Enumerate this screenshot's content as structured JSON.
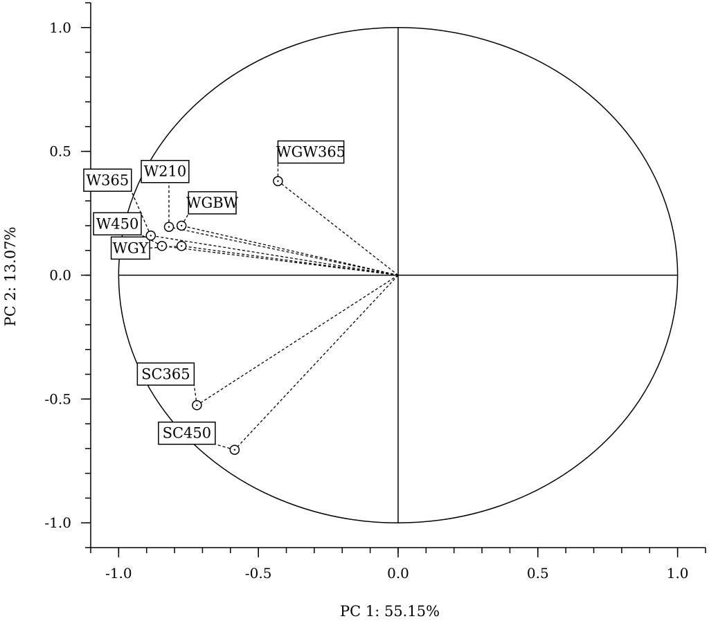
{
  "chart_data": {
    "type": "scatter",
    "title": "",
    "xlabel": "PC 1: 55.15%",
    "ylabel": "PC 2: 13.07%",
    "xlim": [
      -1.1,
      1.1
    ],
    "ylim": [
      -1.1,
      1.1
    ],
    "x_ticks": [
      {
        "value": -1.0,
        "label": "-1.0"
      },
      {
        "value": -0.5,
        "label": "-0.5"
      },
      {
        "value": 0.0,
        "label": "0.0"
      },
      {
        "value": 0.5,
        "label": "0.5"
      },
      {
        "value": 1.0,
        "label": "1.0"
      }
    ],
    "y_ticks": [
      {
        "value": 1.0,
        "label": "1.0"
      },
      {
        "value": 0.5,
        "label": "0.5"
      },
      {
        "value": 0.0,
        "label": "0.0"
      },
      {
        "value": -0.5,
        "label": "-0.5"
      },
      {
        "value": -1.0,
        "label": "-1.0"
      }
    ],
    "minor_tick_step": 0.1,
    "unit_circle": true,
    "reference_lines": [
      0
    ],
    "grid": false,
    "points": [
      {
        "name": "WGW365",
        "x": -0.43,
        "y": 0.38
      },
      {
        "name": "W210",
        "x": -0.82,
        "y": 0.195
      },
      {
        "name": "WGBW",
        "x": -0.775,
        "y": 0.2
      },
      {
        "name": "W365",
        "x": -0.885,
        "y": 0.16
      },
      {
        "name": "W450",
        "x": -0.845,
        "y": 0.118
      },
      {
        "name": "WGY",
        "x": -0.775,
        "y": 0.118
      },
      {
        "name": "SC365",
        "x": -0.72,
        "y": -0.525
      },
      {
        "name": "SC450",
        "x": -0.585,
        "y": -0.705
      }
    ]
  }
}
